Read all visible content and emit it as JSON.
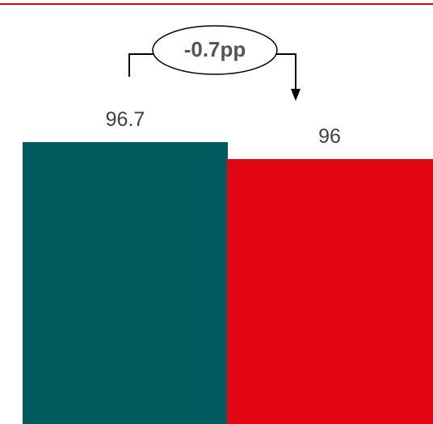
{
  "chart_data": {
    "type": "bar",
    "categories": [
      "",
      ""
    ],
    "values": [
      96.7,
      96
    ],
    "value_labels": [
      "96.7",
      "96"
    ],
    "colors": [
      "#005a5e",
      "#e30613"
    ],
    "annotation": {
      "text": "-0.7pp",
      "from_bar": 0,
      "to_bar": 1
    },
    "ylim": [
      0,
      96.7
    ],
    "grid": false,
    "legend": "none",
    "accent_line_color": "#e30613"
  }
}
